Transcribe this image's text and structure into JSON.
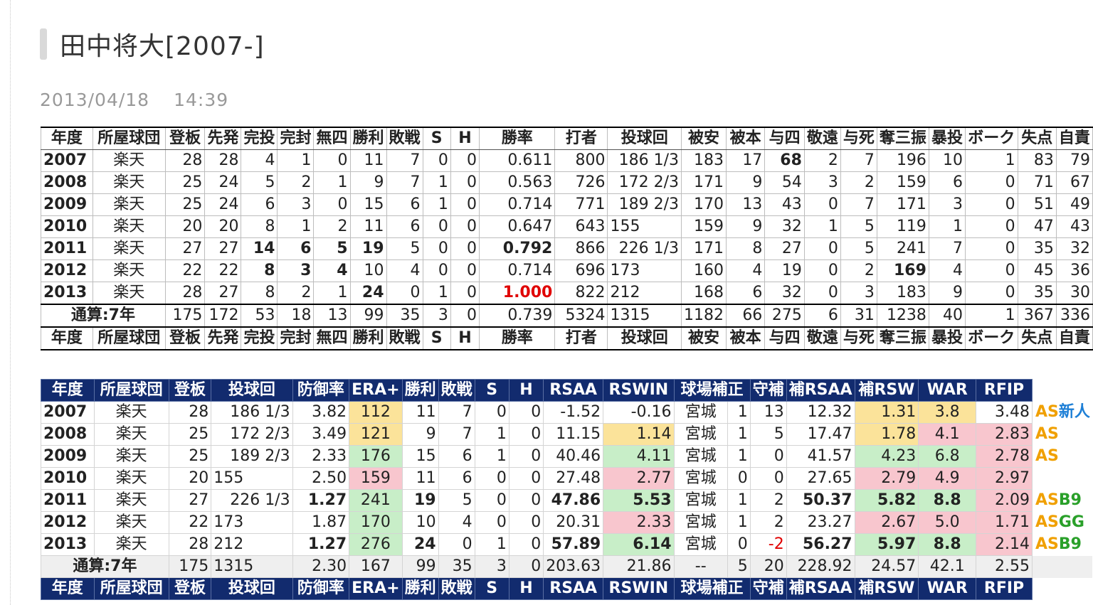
{
  "page": {
    "title": "田中将大[2007-]",
    "date": "2013/04/18",
    "time": "14:39"
  },
  "table1": {
    "headers": [
      "年度",
      "所屋球団",
      "登板",
      "先発",
      "完投",
      "完封",
      "無四",
      "勝利",
      "敗戦",
      "S",
      "H",
      "勝率",
      "打者",
      "投球回",
      "被安",
      "被本",
      "与四",
      "敬遠",
      "与死",
      "奪三振",
      "暴投",
      "ボーク",
      "失点",
      "自責"
    ],
    "rows": [
      [
        "2007",
        "楽天",
        "28",
        "28",
        "4",
        "1",
        "0",
        "11",
        "7",
        "0",
        "0",
        "0.611",
        "800",
        "186 1/3",
        "183",
        "17",
        "68",
        "2",
        "7",
        "196",
        "10",
        "1",
        "83",
        "79"
      ],
      [
        "2008",
        "楽天",
        "25",
        "24",
        "5",
        "2",
        "1",
        "9",
        "7",
        "1",
        "0",
        "0.563",
        "726",
        "172 2/3",
        "171",
        "9",
        "54",
        "3",
        "2",
        "159",
        "6",
        "0",
        "71",
        "67"
      ],
      [
        "2009",
        "楽天",
        "25",
        "24",
        "6",
        "3",
        "0",
        "15",
        "6",
        "1",
        "0",
        "0.714",
        "771",
        "189 2/3",
        "170",
        "13",
        "43",
        "0",
        "7",
        "171",
        "3",
        "0",
        "51",
        "49"
      ],
      [
        "2010",
        "楽天",
        "20",
        "20",
        "8",
        "1",
        "2",
        "11",
        "6",
        "0",
        "0",
        "0.647",
        "643",
        "155",
        "159",
        "9",
        "32",
        "1",
        "5",
        "119",
        "1",
        "0",
        "47",
        "43"
      ],
      [
        "2011",
        "楽天",
        "27",
        "27",
        "14",
        "6",
        "5",
        "19",
        "5",
        "0",
        "0",
        "0.792",
        "866",
        "226 1/3",
        "171",
        "8",
        "27",
        "0",
        "5",
        "241",
        "7",
        "0",
        "35",
        "32"
      ],
      [
        "2012",
        "楽天",
        "22",
        "22",
        "8",
        "3",
        "4",
        "10",
        "4",
        "0",
        "0",
        "0.714",
        "696",
        "173",
        "160",
        "4",
        "19",
        "0",
        "2",
        "169",
        "4",
        "0",
        "45",
        "36"
      ],
      [
        "2013",
        "楽天",
        "28",
        "27",
        "8",
        "2",
        "1",
        "24",
        "0",
        "1",
        "0",
        "1.000",
        "822",
        "212",
        "168",
        "6",
        "32",
        "0",
        "3",
        "183",
        "9",
        "0",
        "35",
        "30"
      ]
    ],
    "total": [
      "通算:7年",
      "175",
      "172",
      "53",
      "18",
      "13",
      "99",
      "35",
      "3",
      "0",
      "0.739",
      "5324",
      "1315",
      "1182",
      "66",
      "275",
      "6",
      "31",
      "1238",
      "40",
      "1",
      "367",
      "336"
    ]
  },
  "table2": {
    "headers": [
      "年度",
      "所屋球団",
      "登板",
      "投球回",
      "防御率",
      "ERA+",
      "勝利",
      "敗戦",
      "S",
      "H",
      "RSAA",
      "RSWIN",
      "球場補正",
      "",
      "守補",
      "補RSAA",
      "補RSW",
      "WAR",
      "RFIP"
    ],
    "rows": [
      [
        "2007",
        "楽天",
        "28",
        "186 1/3",
        "3.82",
        "112",
        "11",
        "7",
        "0",
        "0",
        "-1.52",
        "-0.16",
        "宮城",
        "1",
        "13",
        "12.32",
        "1.31",
        "3.8",
        "3.48"
      ],
      [
        "2008",
        "楽天",
        "25",
        "172 2/3",
        "3.49",
        "121",
        "9",
        "7",
        "1",
        "0",
        "11.15",
        "1.14",
        "宮城",
        "1",
        "5",
        "17.47",
        "1.78",
        "4.1",
        "2.83"
      ],
      [
        "2009",
        "楽天",
        "25",
        "189 2/3",
        "2.33",
        "176",
        "15",
        "6",
        "1",
        "0",
        "40.46",
        "4.11",
        "宮城",
        "1",
        "0",
        "41.57",
        "4.23",
        "6.8",
        "2.78"
      ],
      [
        "2010",
        "楽天",
        "20",
        "155",
        "2.50",
        "159",
        "11",
        "6",
        "0",
        "0",
        "27.48",
        "2.77",
        "宮城",
        "0",
        "0",
        "27.65",
        "2.79",
        "4.9",
        "2.97"
      ],
      [
        "2011",
        "楽天",
        "27",
        "226 1/3",
        "1.27",
        "241",
        "19",
        "5",
        "0",
        "0",
        "47.86",
        "5.53",
        "宮城",
        "1",
        "2",
        "50.37",
        "5.82",
        "8.8",
        "2.09"
      ],
      [
        "2012",
        "楽天",
        "22",
        "173",
        "1.87",
        "170",
        "10",
        "4",
        "0",
        "0",
        "20.31",
        "2.33",
        "宮城",
        "1",
        "2",
        "23.27",
        "2.67",
        "5.0",
        "1.71"
      ],
      [
        "2013",
        "楽天",
        "28",
        "212",
        "1.27",
        "276",
        "24",
        "0",
        "1",
        "0",
        "57.89",
        "6.14",
        "宮城",
        "0",
        "-2",
        "56.27",
        "5.97",
        "8.8",
        "2.14"
      ]
    ],
    "extras": [
      [
        "AS",
        "新人"
      ],
      [
        "AS",
        ""
      ],
      [
        "AS",
        ""
      ],
      [
        "",
        ""
      ],
      [
        "AS",
        "B9"
      ],
      [
        "AS",
        "GG"
      ],
      [
        "AS",
        "B9"
      ]
    ],
    "total": [
      "通算:7年",
      "175",
      "1315",
      "2.30",
      "167",
      "99",
      "35",
      "3",
      "0",
      "203.63",
      "21.86",
      "--",
      "5",
      "20",
      "228.92",
      "24.57",
      "42.1",
      "2.55"
    ]
  },
  "colors": {
    "header_navy": "#122b6e",
    "yellow": "#fbe39a",
    "green": "#c8eec8",
    "pink": "#f8c6ce",
    "red_text": "#e00000",
    "award_orange": "#f0a000"
  }
}
